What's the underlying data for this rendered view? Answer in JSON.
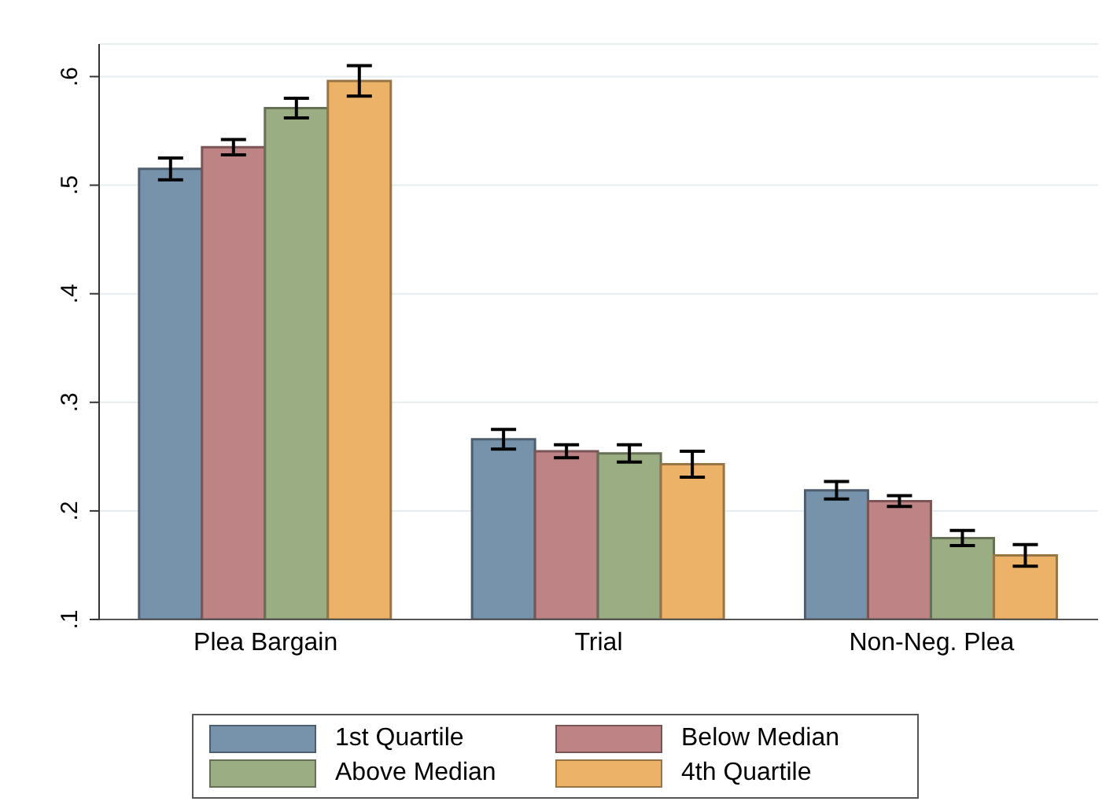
{
  "chart_data": {
    "type": "bar",
    "categories": [
      "Plea Bargain",
      "Trial",
      "Non-Neg. Plea"
    ],
    "series": [
      {
        "name": "1st Quartile",
        "color": "#7792ab",
        "values": [
          0.515,
          0.266,
          0.219
        ],
        "errors": [
          0.01,
          0.009,
          0.008
        ]
      },
      {
        "name": "Below Median",
        "color": "#bd8385",
        "values": [
          0.535,
          0.255,
          0.209
        ],
        "errors": [
          0.007,
          0.006,
          0.005
        ]
      },
      {
        "name": "Above Median",
        "color": "#9bad82",
        "values": [
          0.571,
          0.253,
          0.175
        ],
        "errors": [
          0.009,
          0.008,
          0.007
        ]
      },
      {
        "name": "4th Quartile",
        "color": "#ecb268",
        "values": [
          0.596,
          0.243,
          0.159
        ],
        "errors": [
          0.014,
          0.012,
          0.01
        ]
      }
    ],
    "ylim": [
      0.1,
      0.63
    ],
    "yticks": [
      {
        "value": 0.1,
        "label": ".1"
      },
      {
        "value": 0.2,
        "label": ".2"
      },
      {
        "value": 0.3,
        "label": ".3"
      },
      {
        "value": 0.4,
        "label": ".4"
      },
      {
        "value": 0.5,
        "label": ".5"
      },
      {
        "value": 0.6,
        "label": ".6"
      }
    ],
    "grid": "y",
    "legend": "bottom"
  }
}
